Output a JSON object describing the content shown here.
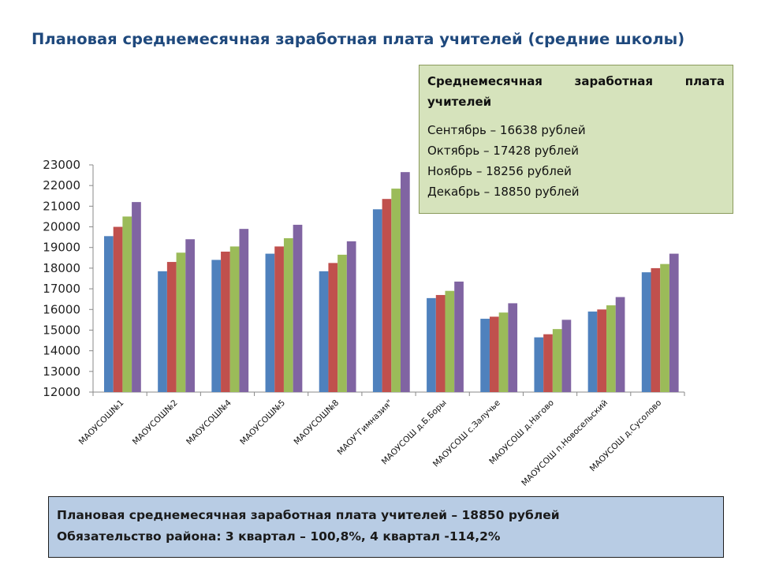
{
  "title": "Плановая среднемесячная заработная плата учителей (средние школы)",
  "info_box": {
    "title": "Среднемесячная заработная плата учителей",
    "lines": [
      "Сентябрь – 16638 рублей",
      "Октябрь – 17428 рублей",
      "Ноябрь – 18256 рублей",
      "Декабрь – 18850 рублей"
    ]
  },
  "summary": {
    "line1": "Плановая среднемесячная заработная плата учителей – 18850 рублей",
    "line2": "Обязательство района: 3 квартал – 100,8%, 4 квартал -114,2%"
  },
  "colors": {
    "series": [
      "#4f81bd",
      "#c0504d",
      "#9bbb59",
      "#8064a2"
    ],
    "title": "#1f497d",
    "info_bg": "#d6e3bc",
    "summary_bg": "#b8cce4"
  },
  "chart_data": {
    "type": "bar",
    "ylim": [
      12000,
      23000
    ],
    "yticks": [
      12000,
      13000,
      14000,
      15000,
      16000,
      17000,
      18000,
      19000,
      20000,
      21000,
      22000,
      23000
    ],
    "grid": false,
    "categories": [
      "МАОУСОШ№1",
      "МАОУСОШ№2",
      "МАОУСОШ№4",
      "МАОУСОШ№5",
      "МАОУСОШ№8",
      "МАОУ\"Гимназия\"",
      "МАОУСОШ д.Б.Боры",
      "МАОУСОШ с.Залучье",
      "МАОУСОШ д.Нагово",
      "МАОУСОШ п.Новосельский",
      "МАОУСОШ д.Сусолово"
    ],
    "series": [
      {
        "values": [
          19550,
          17850,
          18400,
          18700,
          17850,
          20850,
          16550,
          15550,
          14650,
          15900,
          17800
        ]
      },
      {
        "values": [
          20000,
          18300,
          18800,
          19050,
          18250,
          21350,
          16700,
          15650,
          14800,
          16000,
          18000
        ]
      },
      {
        "values": [
          20500,
          18750,
          19050,
          19450,
          18650,
          21850,
          16900,
          15850,
          15050,
          16200,
          18200
        ]
      },
      {
        "values": [
          21200,
          19400,
          19900,
          20100,
          19300,
          22650,
          17350,
          16300,
          15500,
          16600,
          18700
        ]
      }
    ]
  }
}
